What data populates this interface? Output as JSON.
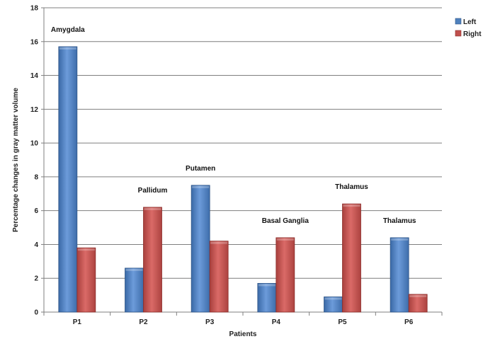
{
  "chart_data": {
    "type": "bar",
    "title": "",
    "xlabel": "Patients",
    "ylabel": "Percentage changes in gray matter volume",
    "ylim": [
      0,
      18
    ],
    "yticks": [
      0,
      2,
      4,
      6,
      8,
      10,
      12,
      14,
      16,
      18
    ],
    "grid": true,
    "legend_position": "top-right",
    "categories": [
      "P1",
      "P2",
      "P3",
      "P4",
      "P5",
      "P6"
    ],
    "series": [
      {
        "name": "Left",
        "color": "#4F81BD",
        "values": [
          15.7,
          2.6,
          7.5,
          1.7,
          0.9,
          4.4
        ]
      },
      {
        "name": "Right",
        "color": "#C0504D",
        "values": [
          3.8,
          6.2,
          4.2,
          4.4,
          6.4,
          1.05
        ]
      }
    ],
    "annotations": [
      {
        "category": "P1",
        "text": "Amygdala"
      },
      {
        "category": "P2",
        "text": "Pallidum"
      },
      {
        "category": "P3",
        "text": "Putamen"
      },
      {
        "category": "P4",
        "text": "Basal Ganglia"
      },
      {
        "category": "P5",
        "text": "Thalamus"
      },
      {
        "category": "P6",
        "text": "Thalamus"
      }
    ]
  }
}
